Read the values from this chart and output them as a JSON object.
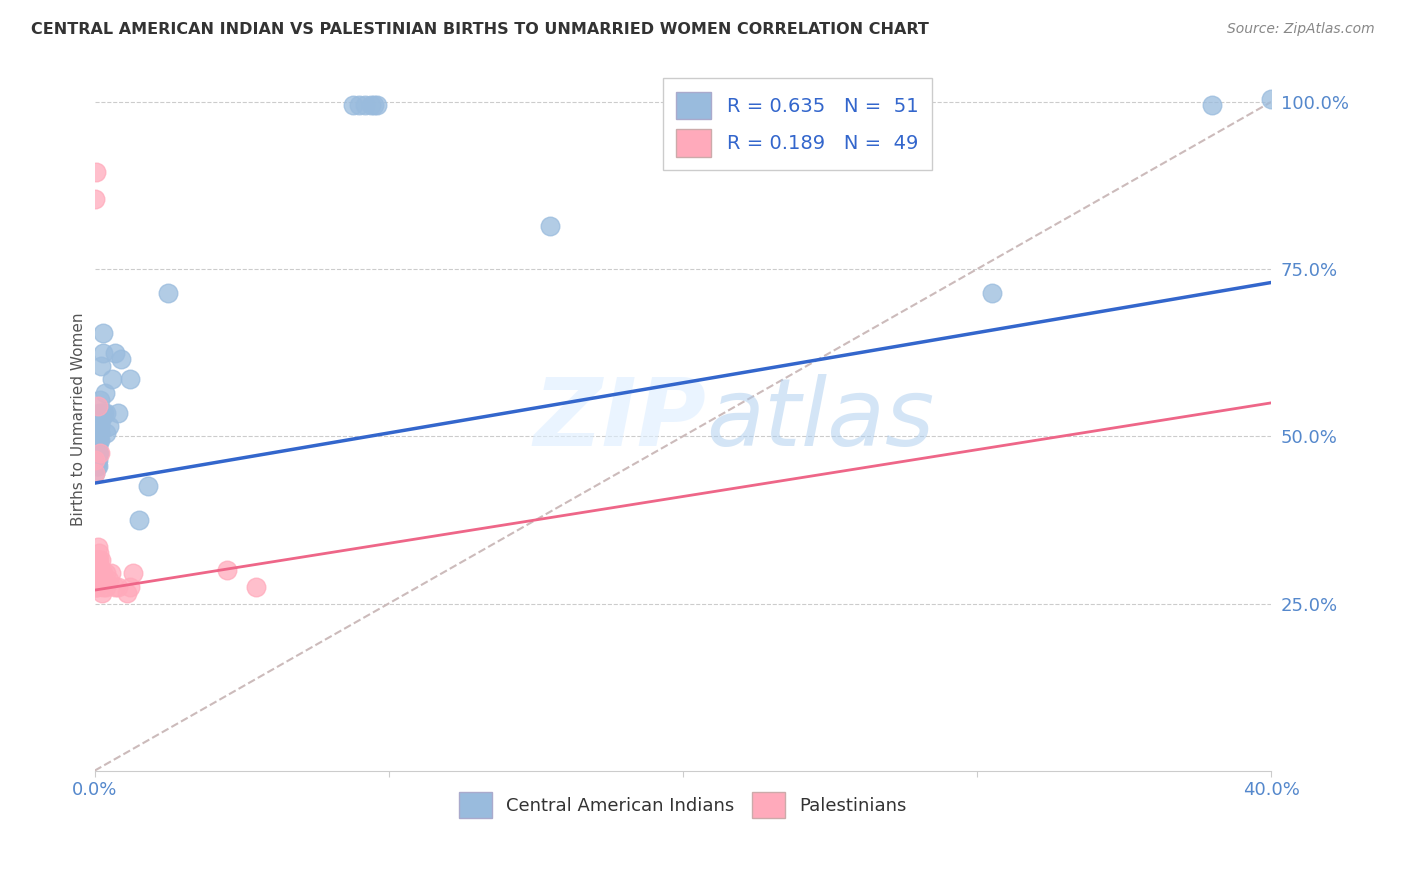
{
  "title": "CENTRAL AMERICAN INDIAN VS PALESTINIAN BIRTHS TO UNMARRIED WOMEN CORRELATION CHART",
  "source": "Source: ZipAtlas.com",
  "ylabel": "Births to Unmarried Women",
  "blue_color": "#99BBDD",
  "pink_color": "#FFAABB",
  "trendline_blue": "#3366CC",
  "trendline_pink": "#EE6688",
  "trendline_gray": "#CCBBBB",
  "watermark_zip": "ZIP",
  "watermark_atlas": "atlas",
  "blue_trend_x0": 0.0,
  "blue_trend_y0": 0.43,
  "blue_trend_x1": 0.4,
  "blue_trend_y1": 0.73,
  "pink_trend_x0": 0.0,
  "pink_trend_y0": 0.27,
  "pink_trend_x1": 0.4,
  "pink_trend_y1": 0.55,
  "gray_trend_x0": 0.0,
  "gray_trend_y0": 0.0,
  "gray_trend_x1": 0.4,
  "gray_trend_y1": 1.0,
  "blue_x": [
    0.0003,
    0.0003,
    0.0005,
    0.0005,
    0.0007,
    0.0007,
    0.0008,
    0.0009,
    0.001,
    0.001,
    0.001,
    0.0012,
    0.0012,
    0.0013,
    0.0014,
    0.0015,
    0.0015,
    0.0016,
    0.0017,
    0.0018,
    0.002,
    0.002,
    0.0022,
    0.0023,
    0.0025,
    0.003,
    0.003,
    0.0032,
    0.0035,
    0.004,
    0.004,
    0.005,
    0.006,
    0.007,
    0.008,
    0.009,
    0.012,
    0.015,
    0.018,
    0.025,
    0.088,
    0.09,
    0.092,
    0.094,
    0.095,
    0.096,
    0.155,
    0.24,
    0.305,
    0.38,
    0.4
  ],
  "blue_y": [
    0.445,
    0.475,
    0.465,
    0.475,
    0.455,
    0.495,
    0.465,
    0.485,
    0.455,
    0.475,
    0.505,
    0.465,
    0.475,
    0.485,
    0.475,
    0.495,
    0.515,
    0.535,
    0.495,
    0.505,
    0.515,
    0.555,
    0.525,
    0.605,
    0.535,
    0.625,
    0.655,
    0.535,
    0.565,
    0.505,
    0.535,
    0.515,
    0.585,
    0.625,
    0.535,
    0.615,
    0.585,
    0.375,
    0.425,
    0.715,
    0.995,
    0.995,
    0.995,
    0.995,
    0.995,
    0.995,
    0.815,
    0.995,
    0.715,
    0.995,
    1.005
  ],
  "pink_x": [
    0.0001,
    0.0001,
    0.0002,
    0.0002,
    0.0003,
    0.0003,
    0.0004,
    0.0004,
    0.0004,
    0.0005,
    0.0005,
    0.0006,
    0.0006,
    0.0007,
    0.0007,
    0.0008,
    0.0008,
    0.0009,
    0.001,
    0.001,
    0.001,
    0.0012,
    0.0012,
    0.0013,
    0.0014,
    0.0015,
    0.0016,
    0.0017,
    0.002,
    0.002,
    0.0022,
    0.0025,
    0.003,
    0.003,
    0.004,
    0.004,
    0.005,
    0.0055,
    0.007,
    0.008,
    0.011,
    0.012,
    0.013,
    0.045,
    0.055,
    0.0003,
    0.0004,
    0.001,
    0.002
  ],
  "pink_y": [
    0.445,
    0.465,
    0.275,
    0.295,
    0.285,
    0.305,
    0.275,
    0.295,
    0.315,
    0.285,
    0.305,
    0.295,
    0.315,
    0.275,
    0.295,
    0.295,
    0.315,
    0.305,
    0.285,
    0.305,
    0.335,
    0.295,
    0.315,
    0.305,
    0.315,
    0.305,
    0.325,
    0.305,
    0.285,
    0.295,
    0.315,
    0.265,
    0.275,
    0.295,
    0.275,
    0.295,
    0.285,
    0.295,
    0.275,
    0.275,
    0.265,
    0.275,
    0.295,
    0.3,
    0.275,
    0.855,
    0.895,
    0.545,
    0.475
  ],
  "xlim": [
    0.0,
    0.4
  ],
  "ylim": [
    0.0,
    1.05
  ],
  "xticks": [
    0.0,
    0.1,
    0.2,
    0.3,
    0.4
  ],
  "xticklabels_show": [
    true,
    false,
    false,
    false,
    true
  ],
  "yticks_right": [
    0.25,
    0.5,
    0.75,
    1.0
  ],
  "yticklabels_right": [
    "25.0%",
    "50.0%",
    "75.0%",
    "100.0%"
  ],
  "legend_R_blue": "R = 0.635",
  "legend_N_blue": "N =  51",
  "legend_R_pink": "R = 0.189",
  "legend_N_pink": "N =  49"
}
